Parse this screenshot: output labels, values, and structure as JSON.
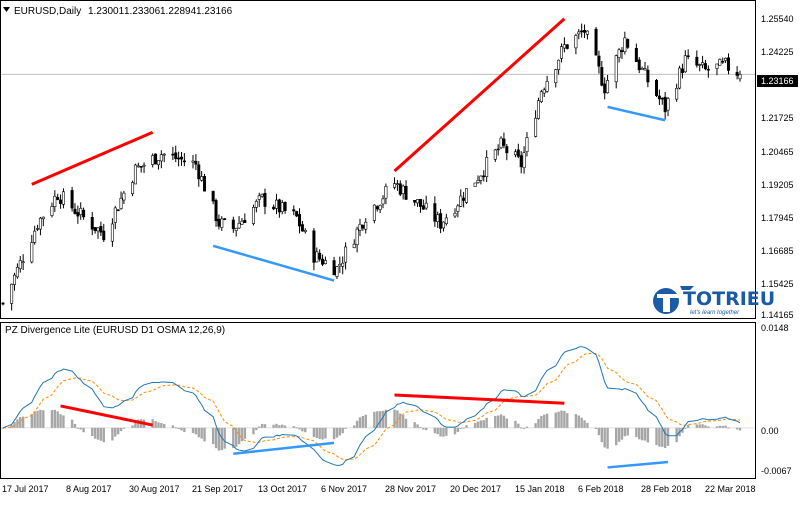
{
  "window": {
    "dropdown_icon": "triangle-down-icon",
    "symbol_timeframe": "EURUSD,Daily",
    "ohlc": [
      "1.23001",
      "1.23306",
      "1.22894",
      "1.23166"
    ]
  },
  "colors": {
    "bull_candle": "#ffffff",
    "bear_candle": "#000000",
    "bear_trend": "#ff0000",
    "bull_trend": "#3399ff",
    "osma_hist": "#a6a6a6",
    "main_line": "#1f77b4",
    "signal_line": "#ff8c00",
    "grid": "#c0c0c0",
    "price_tag_bg": "#000000"
  },
  "price_axis": {
    "labels": [
      "1.25540",
      "1.24225",
      "1.21725",
      "1.20465",
      "1.19205",
      "1.17945",
      "1.16685",
      "1.15425",
      "1.14165"
    ],
    "last_price": "1.23166"
  },
  "indicator": {
    "title": "PZ Divergence Lite (EURUSD D1 OSMA 12,26,9)",
    "axis_labels": [
      "0.0148",
      "0.00",
      "-0.0067"
    ]
  },
  "time_axis": {
    "labels": [
      "17 Jul 2017",
      "8 Aug 2017",
      "30 Aug 2017",
      "21 Sep 2017",
      "13 Oct 2017",
      "6 Nov 2017",
      "28 Nov 2017",
      "20 Dec 2017",
      "15 Jan 2018",
      "6 Feb 2018",
      "28 Feb 2018",
      "22 Mar 2018"
    ]
  },
  "logo": {
    "text": "TOTRIEU",
    "tagline": "let's learn together",
    "icon": "t-wing-logo-icon"
  },
  "chart_data": [
    {
      "type": "candlestick",
      "symbol": "EURUSD",
      "timeframe": "Daily",
      "ylim": [
        1.1405,
        1.258
      ],
      "x_range": [
        "2017-07-14",
        "2018-03-27"
      ],
      "trend_lines": [
        {
          "kind": "bearish",
          "from": [
            "2017-07-24",
            1.1905
          ],
          "to": [
            "2017-09-04",
            1.21
          ]
        },
        {
          "kind": "bullish",
          "from": [
            "2017-09-25",
            1.1675
          ],
          "to": [
            "2017-11-06",
            1.1545
          ]
        },
        {
          "kind": "bearish",
          "from": [
            "2017-11-27",
            1.1955
          ],
          "to": [
            "2018-01-25",
            1.2525
          ]
        },
        {
          "kind": "bullish",
          "from": [
            "2018-02-09",
            1.2195
          ],
          "to": [
            "2018-03-01",
            1.2145
          ]
        }
      ],
      "candles": []
    },
    {
      "type": "line",
      "title": "PZ Divergence Lite (EURUSD D1 OSMA 12,26,9)",
      "ylim": [
        -0.0072,
        0.0152
      ],
      "trend_lines": [
        {
          "kind": "bearish",
          "from": [
            "2017-08-03",
            0.0032
          ],
          "to": [
            "2017-09-04",
            0.0004
          ]
        },
        {
          "kind": "bullish",
          "from": [
            "2017-10-02",
            -0.0038
          ],
          "to": [
            "2017-11-06",
            -0.0022
          ]
        },
        {
          "kind": "bearish",
          "from": [
            "2017-11-27",
            0.0048
          ],
          "to": [
            "2018-01-25",
            0.0036
          ]
        },
        {
          "kind": "bullish",
          "from": [
            "2018-02-09",
            -0.0058
          ],
          "to": [
            "2018-03-02",
            -0.005
          ]
        }
      ]
    }
  ]
}
